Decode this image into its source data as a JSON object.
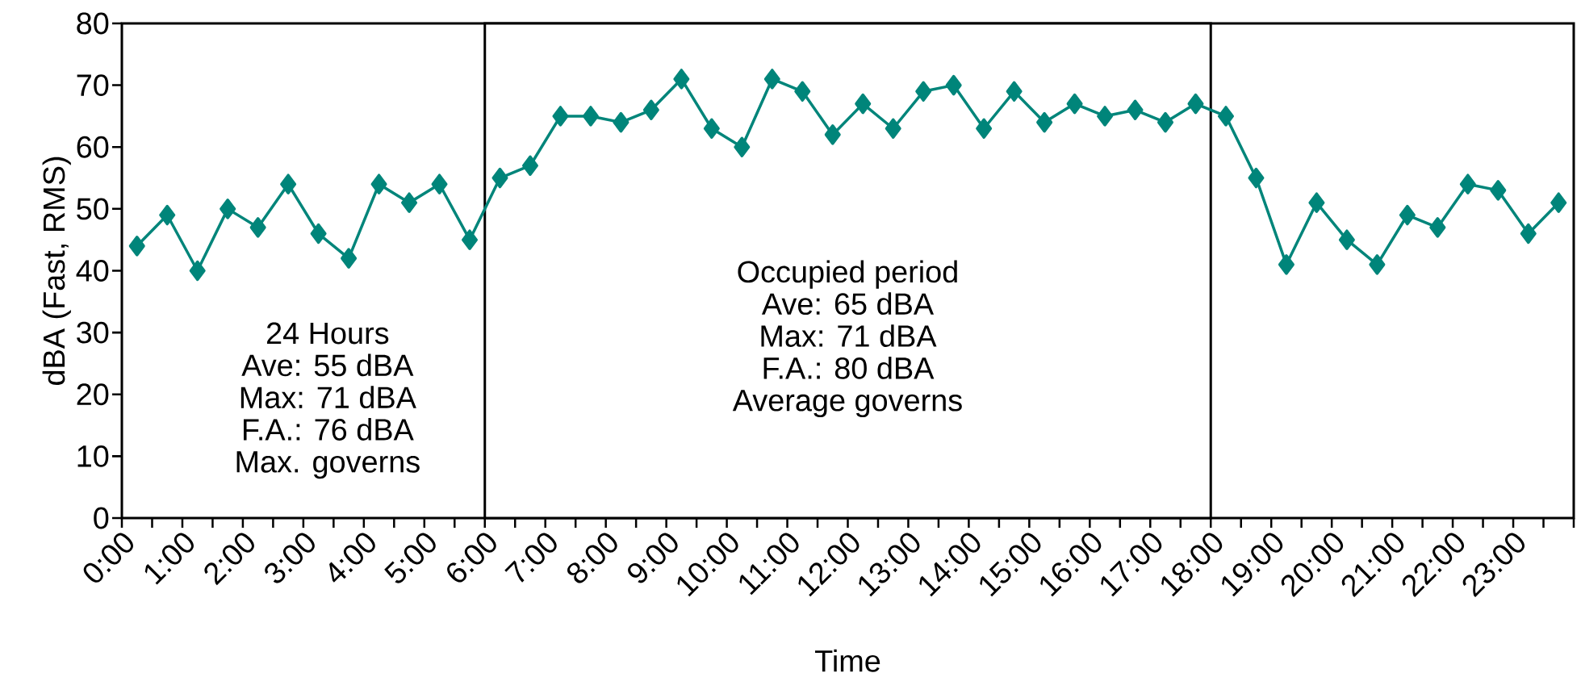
{
  "chart_data": {
    "type": "line",
    "xlabel": "Time",
    "ylabel": "dBA (Fast, RMS)",
    "x": [
      0.25,
      0.75,
      1.25,
      1.75,
      2.25,
      2.75,
      3.25,
      3.75,
      4.25,
      4.75,
      5.25,
      5.75,
      6.25,
      6.75,
      7.25,
      7.75,
      8.25,
      8.75,
      9.25,
      9.75,
      10.25,
      10.75,
      11.25,
      11.75,
      12.25,
      12.75,
      13.25,
      13.75,
      14.25,
      14.75,
      15.25,
      15.75,
      16.25,
      16.75,
      17.25,
      17.75,
      18.25,
      18.75,
      19.25,
      19.75,
      20.25,
      20.75,
      21.25,
      21.75,
      22.25,
      22.75,
      23.25,
      23.75
    ],
    "series": [
      {
        "color": "#00857a",
        "values": [
          44,
          49,
          40,
          50,
          47,
          54,
          46,
          42,
          54,
          51,
          54,
          45,
          55,
          57,
          65,
          65,
          64,
          66,
          71,
          63,
          60,
          71,
          69,
          62,
          67,
          63,
          69,
          70,
          63,
          69,
          64,
          67,
          65,
          66,
          64,
          67,
          65,
          55,
          41,
          51,
          45,
          41,
          49,
          47,
          54,
          53,
          46,
          51
        ]
      }
    ],
    "marker": "diamond",
    "line_style": "solid",
    "xlim": [
      0,
      24
    ],
    "ylim": [
      0,
      80
    ],
    "xticks": [
      {
        "value": 0,
        "label": "0:00"
      },
      {
        "value": 0.5,
        "label": null
      },
      {
        "value": 1,
        "label": "1:00"
      },
      {
        "value": 1.5,
        "label": null
      },
      {
        "value": 2,
        "label": "2:00"
      },
      {
        "value": 2.5,
        "label": null
      },
      {
        "value": 3,
        "label": "3:00"
      },
      {
        "value": 3.5,
        "label": null
      },
      {
        "value": 4,
        "label": "4:00"
      },
      {
        "value": 4.5,
        "label": null
      },
      {
        "value": 5,
        "label": "5:00"
      },
      {
        "value": 5.5,
        "label": null
      },
      {
        "value": 6,
        "label": "6:00"
      },
      {
        "value": 6.5,
        "label": null
      },
      {
        "value": 7,
        "label": "7:00"
      },
      {
        "value": 7.5,
        "label": null
      },
      {
        "value": 8,
        "label": "8:00"
      },
      {
        "value": 8.5,
        "label": null
      },
      {
        "value": 9,
        "label": "9:00"
      },
      {
        "value": 9.5,
        "label": null
      },
      {
        "value": 10,
        "label": "10:00"
      },
      {
        "value": 10.5,
        "label": null
      },
      {
        "value": 11,
        "label": "11:00"
      },
      {
        "value": 11.5,
        "label": null
      },
      {
        "value": 12,
        "label": "12:00"
      },
      {
        "value": 12.5,
        "label": null
      },
      {
        "value": 13,
        "label": "13:00"
      },
      {
        "value": 13.5,
        "label": null
      },
      {
        "value": 14,
        "label": "14:00"
      },
      {
        "value": 14.5,
        "label": null
      },
      {
        "value": 15,
        "label": "15:00"
      },
      {
        "value": 15.5,
        "label": null
      },
      {
        "value": 16,
        "label": "16:00"
      },
      {
        "value": 16.5,
        "label": null
      },
      {
        "value": 17,
        "label": "17:00"
      },
      {
        "value": 17.5,
        "label": null
      },
      {
        "value": 18,
        "label": "18:00"
      },
      {
        "value": 18.5,
        "label": null
      },
      {
        "value": 19,
        "label": "19:00"
      },
      {
        "value": 19.5,
        "label": null
      },
      {
        "value": 20,
        "label": "20:00"
      },
      {
        "value": 20.5,
        "label": null
      },
      {
        "value": 21,
        "label": "21:00"
      },
      {
        "value": 21.5,
        "label": null
      },
      {
        "value": 22,
        "label": "22:00"
      },
      {
        "value": 22.5,
        "label": null
      },
      {
        "value": 23,
        "label": "23:00"
      },
      {
        "value": 23.5,
        "label": null
      },
      {
        "value": 24,
        "label": null
      }
    ],
    "yticks": [
      0,
      10,
      20,
      30,
      40,
      50,
      60,
      70,
      80
    ],
    "bands": [
      {
        "axis": "x",
        "from": 6,
        "to": 18,
        "color": "#ffffff"
      }
    ],
    "annotations": [
      "24 Hours",
      "Ave: 55 dBA",
      "Max: 71 dBA",
      "F.A.: 76 dBA",
      "Max. governs",
      "Occupied period",
      "Ave: 65 dBA",
      "Max: 71 dBA",
      "F.A.: 80 dBA",
      "Average governs"
    ]
  }
}
